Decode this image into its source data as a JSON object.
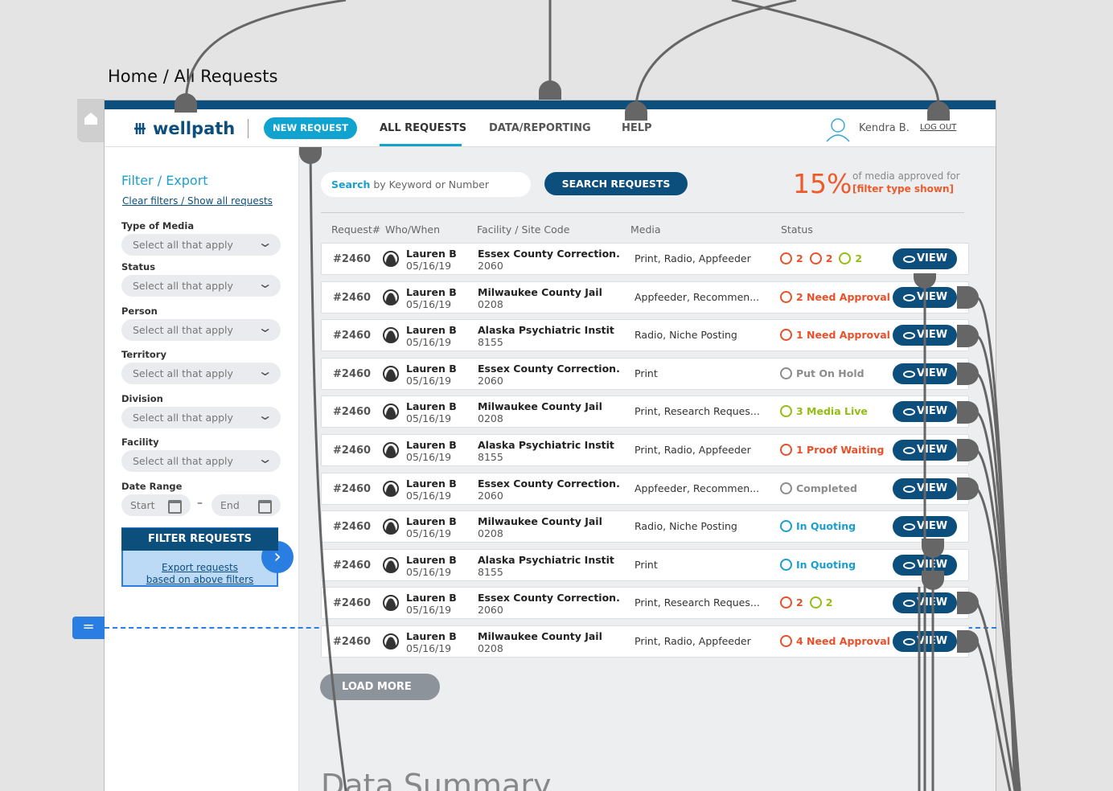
{
  "breadcrumb": "Home / All Requests",
  "nav": {
    "logo": "wellpath",
    "new_request": "NEW REQUEST",
    "tabs": [
      "ALL REQUESTS",
      "DATA/REPORTING",
      "HELP"
    ],
    "user": "Kendra B.",
    "logout": "LOG OUT"
  },
  "sidebar": {
    "title": "Filter / Export",
    "clear": "Clear filters / Show all requests",
    "filters": [
      {
        "label": "Type of Media",
        "placeholder": "Select all that apply"
      },
      {
        "label": "Status",
        "placeholder": "Select all that apply"
      },
      {
        "label": "Person",
        "placeholder": "Select all that apply"
      },
      {
        "label": "Territory",
        "placeholder": "Select all that apply"
      },
      {
        "label": "Division",
        "placeholder": "Select all that apply"
      },
      {
        "label": "Facility",
        "placeholder": "Select all that apply"
      }
    ],
    "date_range": {
      "label": "Date Range",
      "start": "Start",
      "separator": "–",
      "end": "End"
    },
    "filter_button": "FILTER REQUESTS",
    "export": [
      "Export requests",
      "based on above filters"
    ]
  },
  "search": {
    "placeholder_bold": "Search",
    "placeholder_rest": "by Keyword or Number",
    "button": "SEARCH REQUESTS"
  },
  "stat": {
    "value": "15%",
    "text": "of media approved for",
    "highlight": "[filter type shown]"
  },
  "table": {
    "headers": [
      "Request#",
      "Who/When",
      "Facility / Site Code",
      "Media",
      "Status"
    ],
    "rows": [
      {
        "id": "#2460",
        "who": "Lauren B",
        "when": "05/16/19",
        "facility": "Essex County Correction.",
        "code": "2060",
        "media": "Print, Radio, Appfeeder",
        "status": [
          {
            "icon": "approval",
            "text": "2"
          },
          {
            "icon": "proof",
            "text": "2"
          },
          {
            "icon": "live",
            "text": "2"
          }
        ],
        "action": "VIEW"
      },
      {
        "id": "#2460",
        "who": "Lauren B",
        "when": "05/16/19",
        "facility": "Milwaukee County Jail",
        "code": "0208",
        "media": "Appfeeder, Recommen...",
        "status": [
          {
            "icon": "approval",
            "text": "2 Need Approval"
          }
        ],
        "action": "VIEW"
      },
      {
        "id": "#2460",
        "who": "Lauren B",
        "when": "05/16/19",
        "facility": "Alaska Psychiatric Instit",
        "code": "8155",
        "media": "Radio, Niche Posting",
        "status": [
          {
            "icon": "approval",
            "text": "1 Need Approval"
          }
        ],
        "action": "VIEW"
      },
      {
        "id": "#2460",
        "who": "Lauren B",
        "when": "05/16/19",
        "facility": "Essex County Correction.",
        "code": "2060",
        "media": "Print",
        "status": [
          {
            "icon": "hold",
            "text": "Put On Hold"
          }
        ],
        "action": "VIEW"
      },
      {
        "id": "#2460",
        "who": "Lauren B",
        "when": "05/16/19",
        "facility": "Milwaukee County Jail",
        "code": "0208",
        "media": "Print, Research Reques...",
        "status": [
          {
            "icon": "live",
            "text": "3 Media Live"
          }
        ],
        "action": "VIEW"
      },
      {
        "id": "#2460",
        "who": "Lauren B",
        "when": "05/16/19",
        "facility": "Alaska Psychiatric Instit",
        "code": "8155",
        "media": "Print, Radio, Appfeeder",
        "status": [
          {
            "icon": "proof",
            "text": "1 Proof Waiting"
          }
        ],
        "action": "VIEW"
      },
      {
        "id": "#2460",
        "who": "Lauren B",
        "when": "05/16/19",
        "facility": "Essex County Correction.",
        "code": "2060",
        "media": "Appfeeder, Recommen...",
        "status": [
          {
            "icon": "completed",
            "text": "Completed"
          }
        ],
        "action": "VIEW"
      },
      {
        "id": "#2460",
        "who": "Lauren B",
        "when": "05/16/19",
        "facility": "Milwaukee County Jail",
        "code": "0208",
        "media": "Radio, Niche Posting",
        "status": [
          {
            "icon": "quoting",
            "text": "In Quoting"
          }
        ],
        "action": "VIEW"
      },
      {
        "id": "#2460",
        "who": "Lauren B",
        "when": "05/16/19",
        "facility": "Alaska Psychiatric Instit",
        "code": "8155",
        "media": "Print",
        "status": [
          {
            "icon": "quoting",
            "text": "In Quoting"
          }
        ],
        "action": "VIEW"
      },
      {
        "id": "#2460",
        "who": "Lauren B",
        "when": "05/16/19",
        "facility": "Essex County Correction.",
        "code": "2060",
        "media": "Print, Research Reques...",
        "status": [
          {
            "icon": "proof",
            "text": "2"
          },
          {
            "icon": "live",
            "text": "2"
          }
        ],
        "action": "VIEW"
      },
      {
        "id": "#2460",
        "who": "Lauren B",
        "when": "05/16/19",
        "facility": "Milwaukee County Jail",
        "code": "0208",
        "media": "Print, Radio, Appfeeder",
        "status": [
          {
            "icon": "approval",
            "text": "4 Need Approval"
          }
        ],
        "action": "VIEW"
      }
    ]
  },
  "load_more": "LOAD MORE",
  "summary_title": "Data Summary"
}
